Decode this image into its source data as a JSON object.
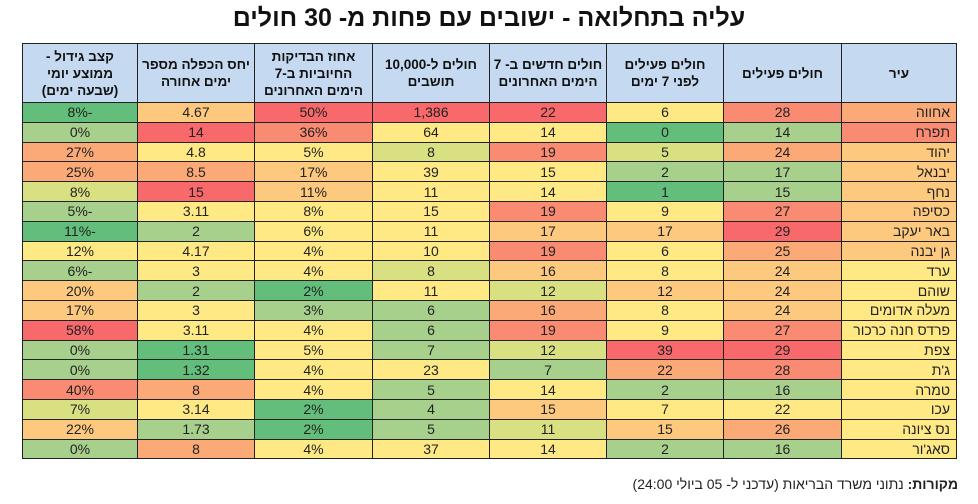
{
  "title": "עליה בתחלואה - ישובים עם פחות מ- 30 חולים",
  "source_label": "מקורות:",
  "source_text": "נתוני משרד הבריאות (עדכני ל- 05 ביולי 24:00)",
  "palette": {
    "R": "#f8696b",
    "OR": "#f98b72",
    "O": "#fbaa77",
    "LO": "#fdc97e",
    "Y": "#ffe984",
    "YG": "#d9e082",
    "LG": "#a8d08d",
    "G": "#63be7b",
    "header": "#c5d9f1"
  },
  "chart_data": {
    "type": "table",
    "columns": [
      "עיר",
      "חולים פעילים",
      "חולים פעילים לפני 7 ימים",
      "חולים חדשים ב- 7 הימים האחרונים",
      "חולים ל-10,000 תושבים",
      "אחוז הבדיקות החיוביות ב-7 הימים האחרונים",
      "יחס הכפלה מספר ימים אחורה",
      "קצב גידול - ממוצע יומי (שבעה ימים)"
    ],
    "rows": [
      {
        "values": [
          "אחווה",
          "28",
          "6",
          "22",
          "1,386",
          "50%",
          "4.67",
          "-8%"
        ],
        "colors": [
          "O",
          "OR",
          "Y",
          "R",
          "R",
          "R",
          "LO",
          "G"
        ]
      },
      {
        "values": [
          "תפרח",
          "14",
          "0",
          "14",
          "64",
          "36%",
          "14",
          "0%"
        ],
        "colors": [
          "OR",
          "LG",
          "G",
          "Y",
          "Y",
          "OR",
          "R",
          "LG"
        ]
      },
      {
        "values": [
          "יהוד",
          "24",
          "5",
          "19",
          "8",
          "5%",
          "4.8",
          "27%"
        ],
        "colors": [
          "LO",
          "O",
          "YG",
          "OR",
          "YG",
          "Y",
          "Y",
          "O"
        ]
      },
      {
        "values": [
          "יבנאל",
          "17",
          "2",
          "15",
          "39",
          "17%",
          "8.5",
          "25%"
        ],
        "colors": [
          "LO",
          "LG",
          "LG",
          "Y",
          "Y",
          "LO",
          "O",
          "O"
        ]
      },
      {
        "values": [
          "נחף",
          "15",
          "1",
          "14",
          "11",
          "11%",
          "15",
          "8%"
        ],
        "colors": [
          "LO",
          "LG",
          "G",
          "Y",
          "Y",
          "LO",
          "R",
          "YG"
        ]
      },
      {
        "values": [
          "כסיפה",
          "27",
          "9",
          "19",
          "15",
          "8%",
          "3.11",
          "-5%"
        ],
        "colors": [
          "LO",
          "OR",
          "Y",
          "OR",
          "Y",
          "Y",
          "Y",
          "LG"
        ]
      },
      {
        "values": [
          "באר יעקב",
          "29",
          "17",
          "17",
          "11",
          "6%",
          "2",
          "-11%"
        ],
        "colors": [
          "LO",
          "R",
          "LO",
          "LO",
          "Y",
          "Y",
          "LG",
          "G"
        ]
      },
      {
        "values": [
          "גן יבנה",
          "25",
          "6",
          "19",
          "10",
          "4%",
          "4.17",
          "12%"
        ],
        "colors": [
          "LO",
          "O",
          "Y",
          "OR",
          "Y",
          "Y",
          "Y",
          "Y"
        ]
      },
      {
        "values": [
          "ערד",
          "24",
          "8",
          "16",
          "8",
          "4%",
          "3",
          "-6%"
        ],
        "colors": [
          "Y",
          "LO",
          "Y",
          "LO",
          "YG",
          "Y",
          "Y",
          "LG"
        ]
      },
      {
        "values": [
          "שוהם",
          "24",
          "12",
          "12",
          "11",
          "2%",
          "2",
          "20%"
        ],
        "colors": [
          "Y",
          "LO",
          "LO",
          "YG",
          "Y",
          "G",
          "LG",
          "LO"
        ]
      },
      {
        "values": [
          "מעלה אדומים",
          "24",
          "8",
          "16",
          "6",
          "3%",
          "3",
          "17%"
        ],
        "colors": [
          "Y",
          "LO",
          "Y",
          "O",
          "LG",
          "LG",
          "Y",
          "LO"
        ]
      },
      {
        "values": [
          "פרדס חנה כרכור",
          "27",
          "9",
          "19",
          "6",
          "4%",
          "3.11",
          "58%"
        ],
        "colors": [
          "Y",
          "OR",
          "Y",
          "OR",
          "LG",
          "Y",
          "Y",
          "R"
        ]
      },
      {
        "values": [
          "צפת",
          "29",
          "39",
          "12",
          "7",
          "5%",
          "1.31",
          "0%"
        ],
        "colors": [
          "Y",
          "R",
          "R",
          "YG",
          "LG",
          "Y",
          "G",
          "LG"
        ]
      },
      {
        "values": [
          "ג'ת",
          "28",
          "22",
          "7",
          "23",
          "4%",
          "1.32",
          "0%"
        ],
        "colors": [
          "Y",
          "OR",
          "O",
          "LG",
          "Y",
          "Y",
          "G",
          "LG"
        ]
      },
      {
        "values": [
          "טמרה",
          "16",
          "2",
          "14",
          "5",
          "4%",
          "8",
          "40%"
        ],
        "colors": [
          "Y",
          "LG",
          "LG",
          "Y",
          "LG",
          "Y",
          "O",
          "OR"
        ]
      },
      {
        "values": [
          "עכו",
          "22",
          "7",
          "15",
          "4",
          "2%",
          "3.14",
          "7%"
        ],
        "colors": [
          "Y",
          "Y",
          "Y",
          "LO",
          "LG",
          "G",
          "Y",
          "YG"
        ]
      },
      {
        "values": [
          "נס ציונה",
          "26",
          "15",
          "11",
          "5",
          "2%",
          "1.73",
          "22%"
        ],
        "colors": [
          "Y",
          "O",
          "LO",
          "YG",
          "LG",
          "G",
          "LG",
          "LO"
        ]
      },
      {
        "values": [
          "סאג'ור",
          "16",
          "2",
          "14",
          "37",
          "4%",
          "8",
          "0%"
        ],
        "colors": [
          "Y",
          "LG",
          "LG",
          "Y",
          "Y",
          "Y",
          "O",
          "LG"
        ]
      }
    ]
  }
}
